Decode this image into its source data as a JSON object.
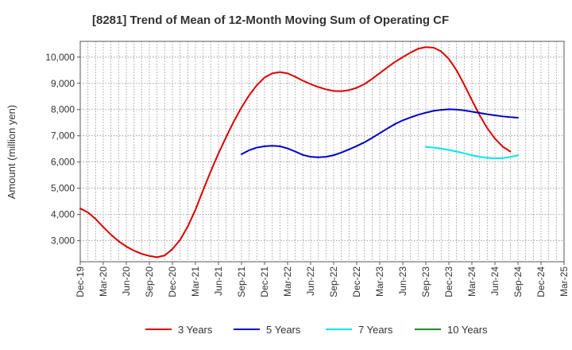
{
  "chart_data": {
    "type": "line",
    "title": "[8281]  Trend of Mean of 12-Month Moving Sum of Operating CF",
    "xlabel": "",
    "ylabel": "Amount (million yen)",
    "ylim": [
      2200,
      10600
    ],
    "yticks": [
      3000,
      4000,
      5000,
      6000,
      7000,
      8000,
      9000,
      10000
    ],
    "ytick_labels": [
      "3,000",
      "4,000",
      "5,000",
      "6,000",
      "7,000",
      "8,000",
      "9,000",
      "10,000"
    ],
    "x_start": "Dec-19",
    "x_count_months": 63,
    "xtick_labels": [
      "Dec-19",
      "Mar-20",
      "Jun-20",
      "Sep-20",
      "Dec-20",
      "Mar-21",
      "Jun-21",
      "Sep-21",
      "Dec-21",
      "Mar-22",
      "Jun-22",
      "Sep-22",
      "Dec-22",
      "Mar-23",
      "Jun-23",
      "Sep-23",
      "Dec-23",
      "Mar-24",
      "Jun-24",
      "Sep-24",
      "Dec-24",
      "Mar-25"
    ],
    "grid": true,
    "legend_position": "bottom",
    "series": [
      {
        "name": "3 Years",
        "color": "#dd0000",
        "start_index": 0,
        "values": [
          4230,
          4080,
          3830,
          3520,
          3230,
          2980,
          2780,
          2620,
          2500,
          2420,
          2370,
          2440,
          2680,
          3030,
          3540,
          4180,
          4930,
          5650,
          6330,
          6950,
          7550,
          8080,
          8550,
          8930,
          9220,
          9380,
          9430,
          9380,
          9250,
          9100,
          8970,
          8860,
          8770,
          8710,
          8700,
          8740,
          8830,
          8970,
          9170,
          9390,
          9610,
          9820,
          10000,
          10170,
          10320,
          10380,
          10360,
          10220,
          9930,
          9500,
          8950,
          8360,
          7790,
          7290,
          6890,
          6590,
          6400
        ]
      },
      {
        "name": "5 Years",
        "color": "#0000cc",
        "start_index": 21,
        "values": [
          6300,
          6450,
          6550,
          6600,
          6620,
          6600,
          6520,
          6400,
          6270,
          6200,
          6180,
          6200,
          6260,
          6360,
          6480,
          6610,
          6750,
          6920,
          7100,
          7280,
          7450,
          7590,
          7700,
          7800,
          7880,
          7950,
          7990,
          8010,
          8000,
          7970,
          7920,
          7870,
          7820,
          7780,
          7740,
          7710,
          7690
        ]
      },
      {
        "name": "7 Years",
        "color": "#00e5ee",
        "start_index": 45,
        "values": [
          6580,
          6550,
          6510,
          6460,
          6400,
          6330,
          6260,
          6200,
          6160,
          6140,
          6150,
          6190,
          6260
        ]
      },
      {
        "name": "10 Years",
        "color": "#228b22",
        "start_index": 0,
        "values": []
      }
    ]
  }
}
